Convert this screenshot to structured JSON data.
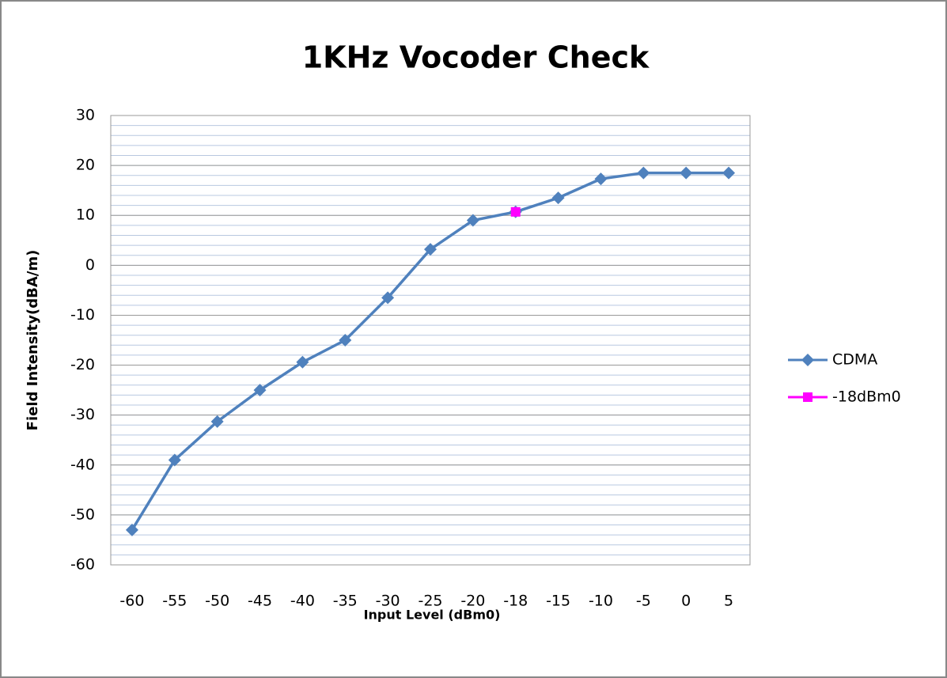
{
  "chart_data": {
    "type": "line",
    "title": "1KHz Vocoder Check",
    "xlabel": "Input Level (dBm0)",
    "ylabel": "Field Intensity(dBA/m)",
    "categories": [
      "-60",
      "-55",
      "-50",
      "-45",
      "-40",
      "-35",
      "-30",
      "-25",
      "-20",
      "-18",
      "-15",
      "-10",
      "-5",
      "0",
      "5"
    ],
    "series": [
      {
        "name": "CDMA",
        "color": "#4f81bd",
        "marker": "diamond",
        "values": [
          -53,
          -39,
          -31.3,
          -25,
          -19.4,
          -15,
          -6.5,
          3.2,
          9,
          10.7,
          13.5,
          17.3,
          18.5,
          18.5,
          18.5
        ]
      },
      {
        "name": "-18dBm0",
        "color": "#ff00ff",
        "marker": "square",
        "values": [
          null,
          null,
          null,
          null,
          null,
          null,
          null,
          null,
          null,
          10.7,
          null,
          null,
          null,
          null,
          null
        ]
      }
    ],
    "ylim": [
      -60,
      30
    ],
    "yticks": [
      -60,
      -50,
      -40,
      -30,
      -20,
      -10,
      0,
      10,
      20,
      30
    ],
    "grid": true,
    "minor_grid_step": 2,
    "legend": "right"
  }
}
